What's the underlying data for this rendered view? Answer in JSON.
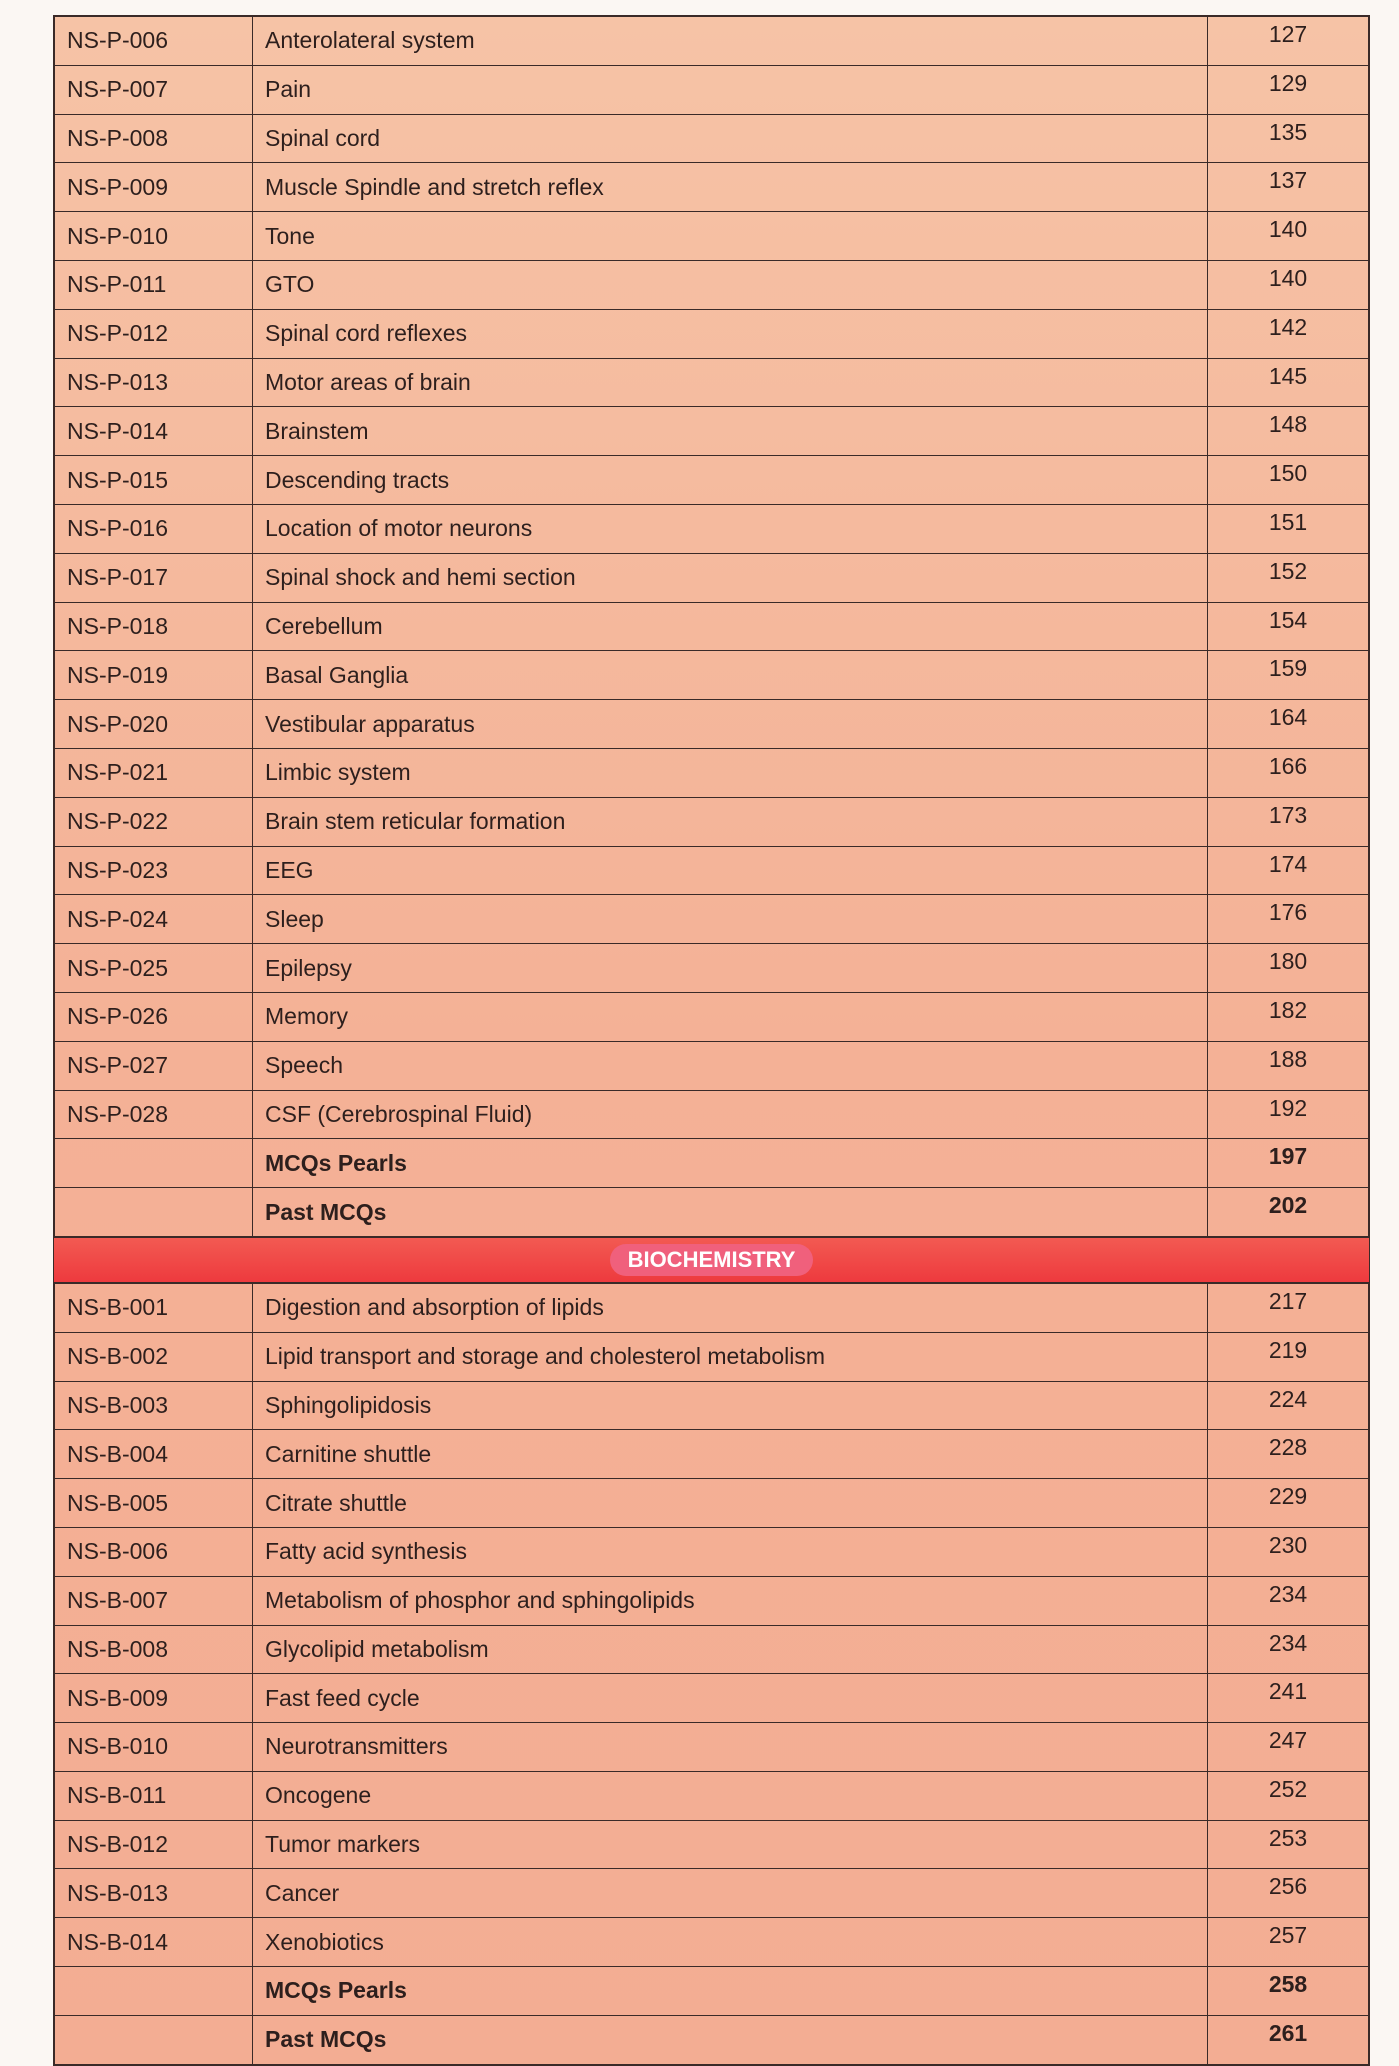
{
  "physiology_rows": [
    {
      "code": "NS-P-006",
      "topic": "Anterolateral system",
      "page": "127"
    },
    {
      "code": "NS-P-007",
      "topic": "Pain",
      "page": "129"
    },
    {
      "code": "NS-P-008",
      "topic": "Spinal cord",
      "page": "135"
    },
    {
      "code": "NS-P-009",
      "topic": "Muscle Spindle and stretch reflex",
      "page": "137"
    },
    {
      "code": "NS-P-010",
      "topic": "Tone",
      "page": "140"
    },
    {
      "code": "NS-P-011",
      "topic": "GTO",
      "page": "140"
    },
    {
      "code": "NS-P-012",
      "topic": "Spinal cord reflexes",
      "page": "142"
    },
    {
      "code": "NS-P-013",
      "topic": "Motor areas of brain",
      "page": "145"
    },
    {
      "code": "NS-P-014",
      "topic": "Brainstem",
      "page": "148"
    },
    {
      "code": "NS-P-015",
      "topic": "Descending tracts",
      "page": "150"
    },
    {
      "code": "NS-P-016",
      "topic": "Location of motor neurons",
      "page": "151"
    },
    {
      "code": "NS-P-017",
      "topic": "Spinal shock and hemi section",
      "page": "152"
    },
    {
      "code": "NS-P-018",
      "topic": "Cerebellum",
      "page": "154"
    },
    {
      "code": "NS-P-019",
      "topic": "Basal Ganglia",
      "page": "159"
    },
    {
      "code": "NS-P-020",
      "topic": "Vestibular apparatus",
      "page": "164"
    },
    {
      "code": "NS-P-021",
      "topic": "Limbic system",
      "page": "166"
    },
    {
      "code": "NS-P-022",
      "topic": "Brain stem reticular formation",
      "page": "173"
    },
    {
      "code": "NS-P-023",
      "topic": "EEG",
      "page": "174"
    },
    {
      "code": "NS-P-024",
      "topic": "Sleep",
      "page": "176"
    },
    {
      "code": "NS-P-025",
      "topic": "Epilepsy",
      "page": "180"
    },
    {
      "code": "NS-P-026",
      "topic": "Memory",
      "page": "182"
    },
    {
      "code": "NS-P-027",
      "topic": "Speech",
      "page": "188"
    },
    {
      "code": "NS-P-028",
      "topic": "CSF (Cerebrospinal Fluid)",
      "page": "192"
    },
    {
      "code": "",
      "topic": "MCQs Pearls",
      "page": "197",
      "bold": true
    },
    {
      "code": "",
      "topic": "Past MCQs",
      "page": "202",
      "bold": true
    }
  ],
  "section_banner": "BIOCHEMISTRY",
  "biochemistry_rows": [
    {
      "code": "NS-B-001",
      "topic": "Digestion and absorption of lipids",
      "page": "217"
    },
    {
      "code": "NS-B-002",
      "topic": "Lipid transport and storage and cholesterol metabolism",
      "page": "219"
    },
    {
      "code": "NS-B-003",
      "topic": "Sphingolipidosis",
      "page": "224"
    },
    {
      "code": "NS-B-004",
      "topic": "Carnitine shuttle",
      "page": "228"
    },
    {
      "code": "NS-B-005",
      "topic": "Citrate shuttle",
      "page": "229"
    },
    {
      "code": "NS-B-006",
      "topic": "Fatty acid synthesis",
      "page": "230"
    },
    {
      "code": "NS-B-007",
      "topic": "Metabolism of phosphor and sphingolipids",
      "page": "234"
    },
    {
      "code": "NS-B-008",
      "topic": "Glycolipid metabolism",
      "page": "234"
    },
    {
      "code": "NS-B-009",
      "topic": "Fast feed cycle",
      "page": "241"
    },
    {
      "code": "NS-B-010",
      "topic": "Neurotransmitters",
      "page": "247"
    },
    {
      "code": "NS-B-011",
      "topic": "Oncogene",
      "page": "252"
    },
    {
      "code": "NS-B-012",
      "topic": "Tumor markers",
      "page": "253"
    },
    {
      "code": "NS-B-013",
      "topic": "Cancer",
      "page": "256"
    },
    {
      "code": "NS-B-014",
      "topic": "Xenobiotics",
      "page": "257"
    },
    {
      "code": "",
      "topic": "MCQs Pearls",
      "page": "258",
      "bold": true
    },
    {
      "code": "",
      "topic": "Past MCQs",
      "page": "261",
      "bold": true
    }
  ],
  "colors": {
    "banner": "#ee3a3e",
    "table_bg": "#f4b196"
  }
}
